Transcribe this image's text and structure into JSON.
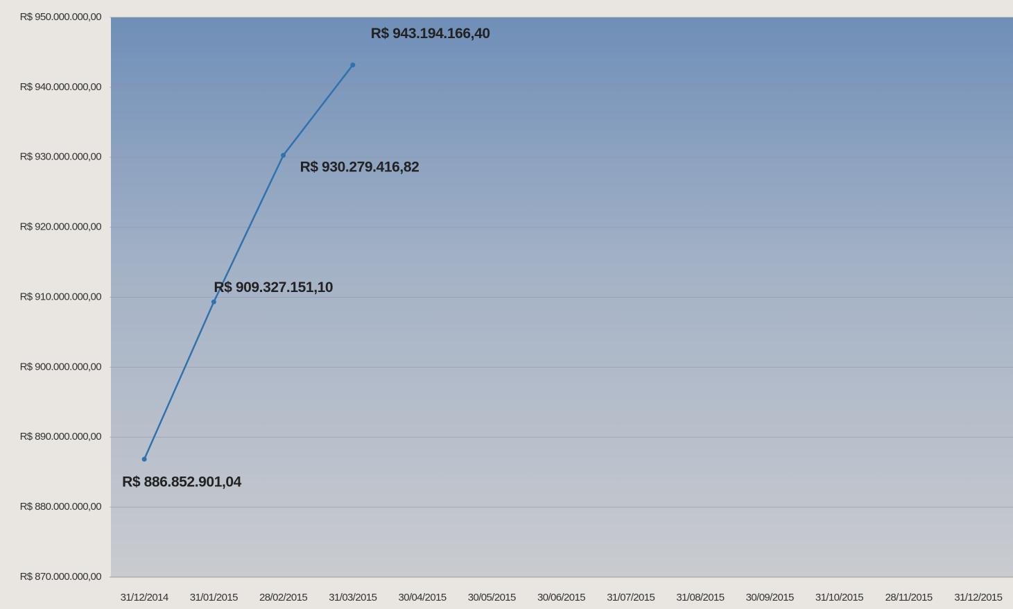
{
  "chart_data": {
    "type": "line",
    "categories": [
      "31/12/2014",
      "31/01/2015",
      "28/02/2015",
      "31/03/2015",
      "30/04/2015",
      "30/05/2015",
      "30/06/2015",
      "31/07/2015",
      "31/08/2015",
      "30/09/2015",
      "31/10/2015",
      "28/11/2015",
      "31/12/2015"
    ],
    "values": [
      886852901.04,
      909327151.1,
      930279416.82,
      943194166.4,
      null,
      null,
      null,
      null,
      null,
      null,
      null,
      null,
      null
    ],
    "value_labels": [
      "R$ 886.852.901,04",
      "R$ 909.327.151,10",
      "R$ 930.279.416,82",
      "R$ 943.194.166,40",
      null,
      null,
      null,
      null,
      null,
      null,
      null,
      null,
      null
    ],
    "color": "#2f72ad",
    "ylim": [
      870000000,
      950000000
    ],
    "yticks": [
      {
        "value": 870000000,
        "label": "R$ 870.000.000,00"
      },
      {
        "value": 880000000,
        "label": "R$ 880.000.000,00"
      },
      {
        "value": 890000000,
        "label": "R$ 890.000.000,00"
      },
      {
        "value": 900000000,
        "label": "R$ 900.000.000,00"
      },
      {
        "value": 910000000,
        "label": "R$ 910.000.000,00"
      },
      {
        "value": 920000000,
        "label": "R$ 920.000.000,00"
      },
      {
        "value": 930000000,
        "label": "R$ 930.000.000,00"
      },
      {
        "value": 940000000,
        "label": "R$ 940.000.000,00"
      },
      {
        "value": 950000000,
        "label": "R$ 950.000.000,00"
      }
    ],
    "grid": true
  }
}
